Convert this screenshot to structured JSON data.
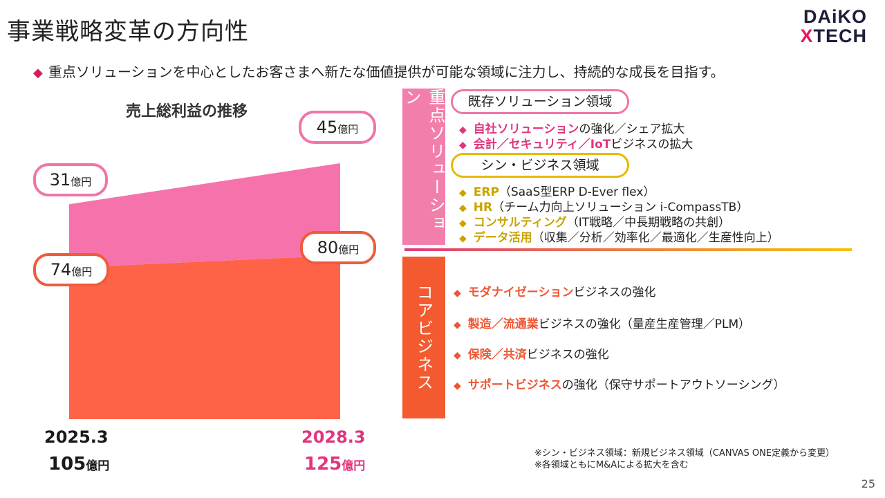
{
  "title": "事業戦略変革の方向性",
  "logo": {
    "line1": "DAiKO",
    "line2_mark": "X",
    "line2_rest": "TECH"
  },
  "subtitle_marker": "◆",
  "subtitle": "重点ソリューションを中心としたお客さまへ新たな価値提供が可能な領域に注力し、持続的な成長を目指す。",
  "chart_data": {
    "type": "area",
    "title": "売上総利益の推移",
    "categories": [
      "2025.3",
      "2028.3"
    ],
    "stacked": true,
    "unit": "億円",
    "series": [
      {
        "name": "コアビジネス",
        "values": [
          74,
          80
        ],
        "color": "#ff6347"
      },
      {
        "name": "重点ソリューション",
        "values": [
          31,
          45
        ],
        "color": "#f573aa"
      }
    ],
    "totals": [
      105,
      125
    ],
    "labels": [
      {
        "value": "31",
        "unit": "億円"
      },
      {
        "value": "45",
        "unit": "億円"
      },
      {
        "value": "74",
        "unit": "億円"
      },
      {
        "value": "80",
        "unit": "億円"
      }
    ],
    "x_labels": [
      "2025.3",
      "2028.3"
    ],
    "total_labels": [
      {
        "value": "105",
        "unit": "億円"
      },
      {
        "value": "125",
        "unit": "億円"
      }
    ]
  },
  "focus_tab": "重点ソリューション",
  "core_tab": "コアビジネス",
  "existing": {
    "label": "既存ソリューション領域",
    "items": [
      {
        "marker": "◆",
        "hl": "自社ソリューション",
        "rest": "の強化／シェア拡大"
      },
      {
        "marker": "◆",
        "hl": "会計／セキュリティ／IoT",
        "rest": "ビジネスの拡大"
      }
    ]
  },
  "shin": {
    "label": "シン・ビジネス領域",
    "items": [
      {
        "marker": "◆",
        "hl": "ERP",
        "rest": "（SaaS型ERP D-Ever flex）"
      },
      {
        "marker": "◆",
        "hl": "HR",
        "rest": "（チーム力向上ソリューション i-CompassTB）"
      },
      {
        "marker": "◆",
        "hl": "コンサルティング",
        "rest": "（IT戦略／中長期戦略の共創）"
      },
      {
        "marker": "◆",
        "hl": "データ活用",
        "rest": "（収集／分析／効率化／最適化／生産性向上）"
      }
    ]
  },
  "core": {
    "items": [
      {
        "marker": "◆",
        "hl": "モダナイゼーション",
        "rest": "ビジネスの強化"
      },
      {
        "marker": "◆",
        "hl": "製造／流通業",
        "rest": "ビジネスの強化（量産生産管理／PLM）"
      },
      {
        "marker": "◆",
        "hl": "保険／共済",
        "rest": "ビジネスの強化"
      },
      {
        "marker": "◆",
        "hl": "サポートビジネス",
        "rest": "の強化（保守サポートアウトソーシング）"
      }
    ]
  },
  "notes": [
    "※シン・ビジネス領域：新規ビジネス領域（CANVAS ONE定義から変更）",
    "※各領域ともにM&Aによる拡大を含む"
  ],
  "page_number": "25",
  "colors": {
    "pink": "#f573aa",
    "orange": "#ff6347",
    "gold": "#e8b800",
    "tab_pink": "#f27fab",
    "tab_orange": "#f45a30"
  }
}
